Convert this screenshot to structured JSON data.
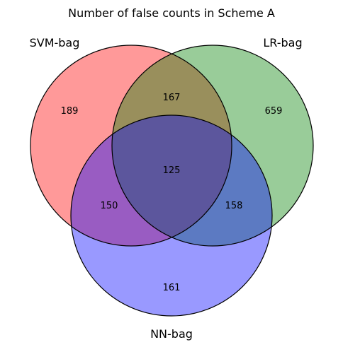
{
  "title": "Number of false counts in Scheme A",
  "sets": [
    {
      "name": "SVM-bag",
      "color": "#ff0000"
    },
    {
      "name": "LR-bag",
      "color": "#008000"
    },
    {
      "name": "NN-bag",
      "color": "#0000ff"
    }
  ],
  "regions": {
    "svm_only": "189",
    "lr_only": "659",
    "nn_only": "161",
    "svm_lr": "167",
    "svm_nn": "150",
    "lr_nn": "158",
    "all_three": "125"
  },
  "fill_opacity": 0.4
}
